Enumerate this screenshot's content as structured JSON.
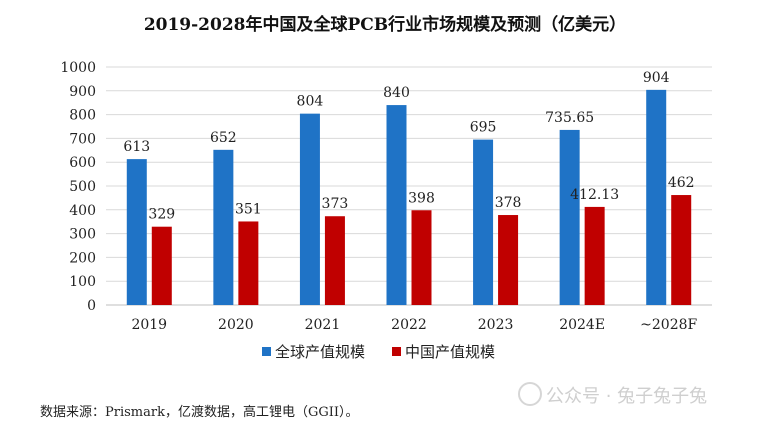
{
  "chart_data": {
    "type": "bar",
    "title": "2019-2028年中国及全球PCB行业市场规模及预测（亿美元）",
    "categories": [
      "2019",
      "2020",
      "2021",
      "2022",
      "2023",
      "2024E",
      "~2028F"
    ],
    "series": [
      {
        "name": "全球产值规模",
        "color": "#1f73c6",
        "values": [
          613,
          652,
          804,
          840,
          695,
          735.65,
          904
        ],
        "labels": [
          "613",
          "652",
          "804",
          "840",
          "695",
          "735.65",
          "904"
        ]
      },
      {
        "name": "中国产值规模",
        "color": "#c00000",
        "values": [
          329,
          351,
          373,
          398,
          378,
          412.13,
          462
        ],
        "labels": [
          "329",
          "351",
          "373",
          "398",
          "378",
          "412.13",
          "462"
        ]
      }
    ],
    "yticks": [
      0,
      100,
      200,
      300,
      400,
      500,
      600,
      700,
      800,
      900,
      1000
    ],
    "ylim": [
      0,
      1000
    ],
    "grid": true,
    "xlabel": "",
    "ylabel": "",
    "legend_position": "bottom"
  },
  "source_note": "数据来源：Prismark，亿渡数据，高工锂电（GGII）。",
  "watermark": "公众号 · 兔子兔子兔"
}
